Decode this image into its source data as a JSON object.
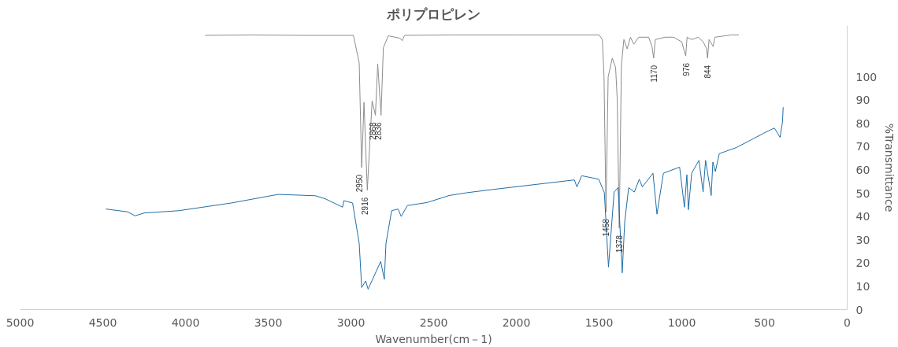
{
  "chart_data": {
    "type": "line",
    "title": "ポリプロピレン",
    "xlabel": "Wavenumber(cm－1)",
    "ylabel": "%Transmittance",
    "xlim": [
      5000,
      0
    ],
    "xticks": [
      5000,
      4500,
      4000,
      3500,
      3000,
      2500,
      2000,
      1500,
      1000,
      500,
      0
    ],
    "ylim": [
      0,
      122
    ],
    "yticks": [
      0,
      10,
      20,
      30,
      40,
      50,
      60,
      70,
      80,
      90,
      100
    ],
    "grid": false,
    "marker": "none",
    "line_style": "solid",
    "series": [
      {
        "color": "#8c8c8c",
        "x": [
          3880,
          3600,
          3300,
          2985,
          2950,
          2935,
          2921,
          2901,
          2872,
          2852,
          2838,
          2818,
          2804,
          2774,
          2705,
          2690,
          2676,
          2400,
          2000,
          1500,
          1480,
          1470,
          1458,
          1445,
          1420,
          1400,
          1390,
          1378,
          1365,
          1350,
          1330,
          1310,
          1290,
          1260,
          1200,
          1180,
          1170,
          1160,
          1100,
          1050,
          1000,
          985,
          976,
          968,
          940,
          900,
          870,
          850,
          844,
          835,
          810,
          800,
          700,
          656
        ],
        "values": [
          117.8,
          118,
          117.8,
          117.8,
          106,
          61,
          89,
          51.3,
          89.7,
          83.5,
          105.5,
          83.5,
          112.5,
          117.6,
          116.6,
          115.5,
          117.8,
          118,
          118,
          118,
          116,
          100,
          42,
          100,
          108,
          104,
          90,
          35,
          105,
          116,
          112,
          117,
          114,
          117,
          117,
          113,
          108,
          116,
          117,
          117,
          115,
          111,
          109,
          117,
          116,
          117,
          115,
          112,
          108,
          116,
          113,
          117,
          118,
          118
        ]
      },
      {
        "color": "#1f6ea8",
        "x": [
          4480,
          4350,
          4305,
          4250,
          4040,
          3723,
          3439,
          3214,
          3155,
          3050,
          3043,
          2990,
          2950,
          2935,
          2911,
          2896,
          2820,
          2798,
          2788,
          2754,
          2715,
          2696,
          2659,
          2539,
          2407,
          2300,
          2143,
          1649,
          1634,
          1605,
          1502,
          1468,
          1443,
          1409,
          1385,
          1360,
          1345,
          1321,
          1287,
          1257,
          1238,
          1174,
          1150,
          1111,
          1013,
          984,
          969,
          960,
          940,
          896,
          871,
          856,
          822,
          812,
          797,
          773,
          670,
          504,
          440,
          406,
          391,
          387
        ],
        "values": [
          43.2,
          42,
          40.3,
          41.5,
          42.5,
          45.8,
          49.5,
          48.9,
          47.6,
          44,
          46.8,
          45.8,
          28.5,
          9.5,
          12.3,
          8.8,
          20.7,
          13,
          28.5,
          42.5,
          43.2,
          40,
          44.7,
          46,
          49,
          50.2,
          51.6,
          55.7,
          52.7,
          57.5,
          56,
          50.2,
          18.3,
          50.5,
          52.4,
          15.8,
          37.7,
          52.4,
          50.5,
          56,
          52.7,
          58.6,
          41,
          58.6,
          61.2,
          44,
          57.9,
          42.9,
          58.6,
          64.1,
          50.5,
          64.1,
          49,
          63.4,
          59.3,
          67,
          69.6,
          75.8,
          78,
          74,
          80.6,
          86.8
        ]
      }
    ],
    "annotations": [
      {
        "text": "2950",
        "x": 2950,
        "y": 61
      },
      {
        "text": "2916",
        "x": 2916,
        "y": 51.3
      },
      {
        "text": "2868",
        "x": 2868,
        "y": 83.5
      },
      {
        "text": "2836",
        "x": 2836,
        "y": 83.5
      },
      {
        "text": "1458",
        "x": 1458,
        "y": 42
      },
      {
        "text": "1378",
        "x": 1378,
        "y": 35
      },
      {
        "text": "1170",
        "x": 1170,
        "y": 108
      },
      {
        "text": "976",
        "x": 976,
        "y": 109
      },
      {
        "text": "844",
        "x": 844,
        "y": 108
      }
    ]
  }
}
